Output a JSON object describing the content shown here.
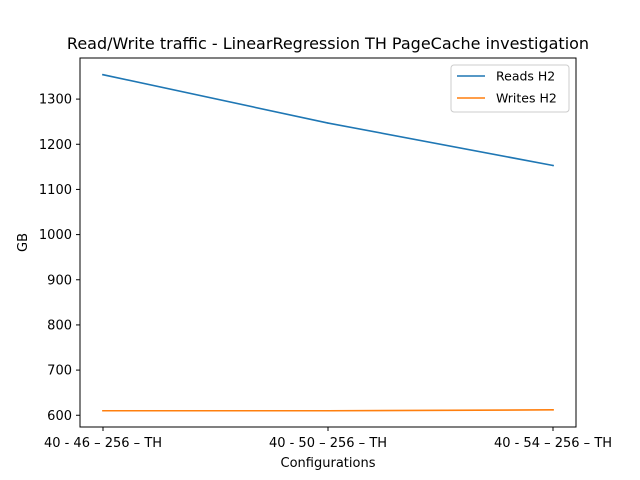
{
  "chart_data": {
    "type": "line",
    "title": "Read/Write traffic - LinearRegression TH PageCache investigation",
    "xlabel": "Configurations",
    "ylabel": "GB",
    "categories": [
      "40 - 46 – 256 – TH",
      "40 - 50 – 256 – TH",
      "40 - 54 – 256 – TH"
    ],
    "ylim": [
      574,
      1391
    ],
    "yticks": [
      600,
      700,
      800,
      900,
      1000,
      1100,
      1200,
      1300
    ],
    "grid": false,
    "legend_position": "top-right",
    "series": [
      {
        "name": "Reads H2",
        "color": "#1f77b4",
        "values": [
          1354,
          1247,
          1153
        ]
      },
      {
        "name": "Writes H2",
        "color": "#ff7f0e",
        "values": [
          610,
          610,
          612
        ]
      }
    ]
  }
}
